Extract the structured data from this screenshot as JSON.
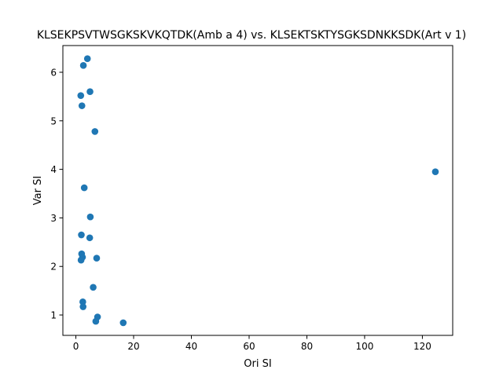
{
  "chart_data": {
    "type": "scatter",
    "title": "KLSEKPSVTWSGKSKVKQTDK(Amb a 4) vs. KLSEKTSKTYSGKSDNKKSDK(Art v 1)",
    "xlabel": "Ori SI",
    "ylabel": "Var SI",
    "xlim": [
      -4.5,
      130.5
    ],
    "ylim": [
      0.58,
      6.55
    ],
    "xticks": [
      0,
      20,
      40,
      60,
      80,
      100,
      120
    ],
    "yticks": [
      1,
      2,
      3,
      4,
      5,
      6
    ],
    "grid": false,
    "legend": "none",
    "colors": {
      "marker": "#1f77b4"
    },
    "points": [
      {
        "x": 4.0,
        "y": 6.28
      },
      {
        "x": 2.6,
        "y": 6.14
      },
      {
        "x": 4.9,
        "y": 5.6
      },
      {
        "x": 1.7,
        "y": 5.52
      },
      {
        "x": 2.1,
        "y": 5.31
      },
      {
        "x": 6.6,
        "y": 4.78
      },
      {
        "x": 124.5,
        "y": 3.95
      },
      {
        "x": 2.9,
        "y": 3.62
      },
      {
        "x": 5.0,
        "y": 3.02
      },
      {
        "x": 1.9,
        "y": 2.65
      },
      {
        "x": 4.8,
        "y": 2.59
      },
      {
        "x": 2.0,
        "y": 2.26
      },
      {
        "x": 7.2,
        "y": 2.17
      },
      {
        "x": 2.3,
        "y": 2.19
      },
      {
        "x": 1.8,
        "y": 2.13
      },
      {
        "x": 6.0,
        "y": 1.57
      },
      {
        "x": 2.4,
        "y": 1.27
      },
      {
        "x": 2.5,
        "y": 1.17
      },
      {
        "x": 7.5,
        "y": 0.96
      },
      {
        "x": 6.9,
        "y": 0.87
      },
      {
        "x": 16.4,
        "y": 0.84
      }
    ]
  }
}
